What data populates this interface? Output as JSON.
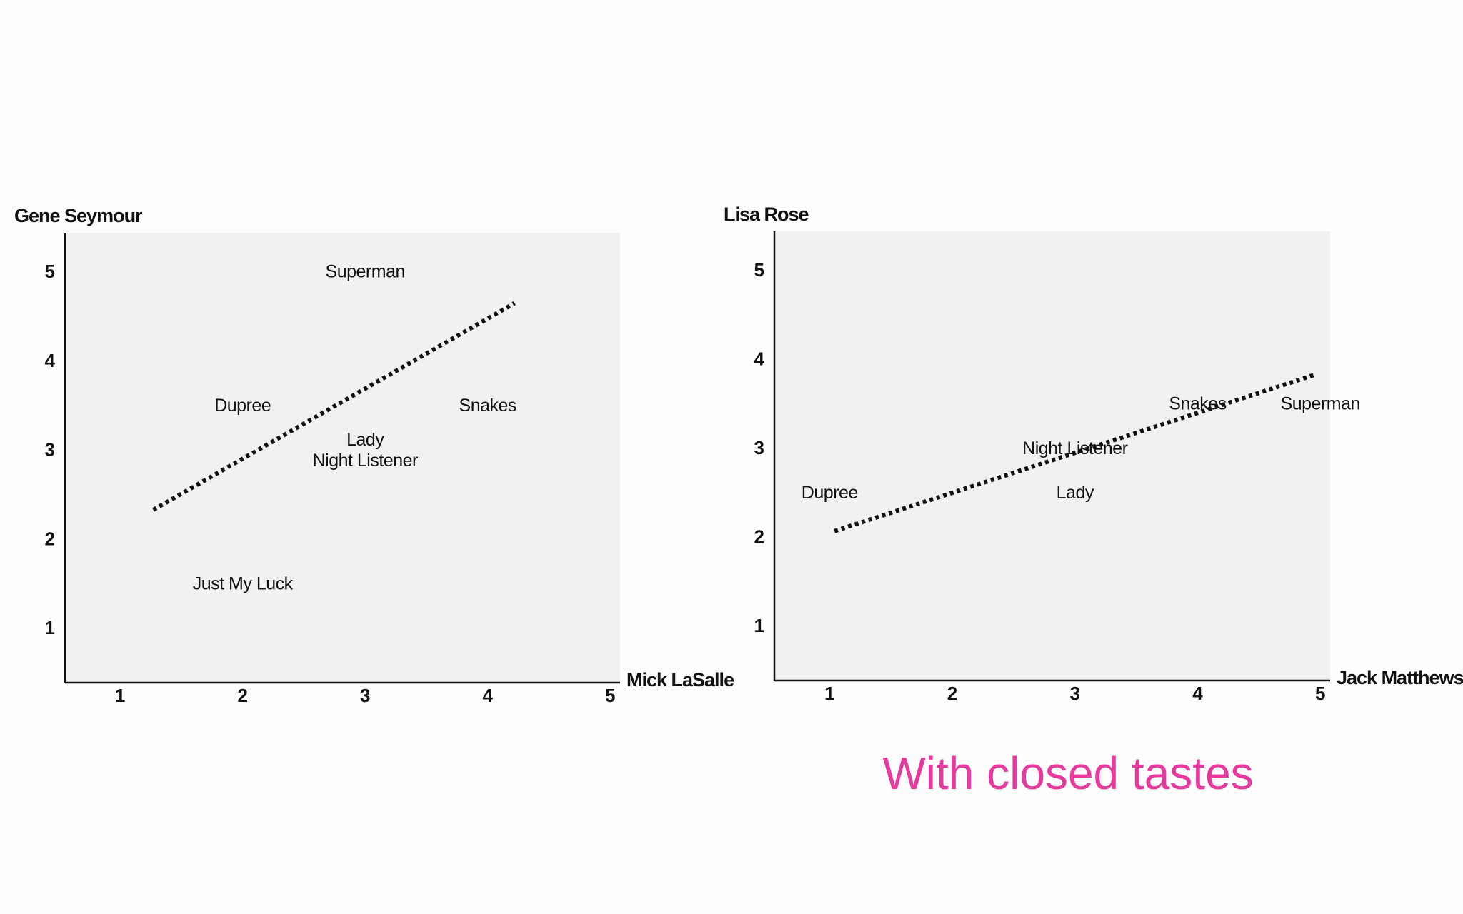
{
  "chart_data": [
    {
      "type": "scatter",
      "x_label": "Mick LaSalle",
      "y_label": "Gene Seymour",
      "labels": [
        "Superman",
        "Dupree",
        "Snakes",
        "Lady",
        "Night Listener",
        "Just My Luck"
      ],
      "x": [
        3,
        2,
        4,
        3,
        3,
        2
      ],
      "values": [
        5,
        3.5,
        3.5,
        3,
        3,
        1.5
      ],
      "trend_line": {
        "x": [
          1.27,
          4.22
        ],
        "values": [
          2.34,
          4.66
        ],
        "color": "#111111"
      },
      "xlim": [
        0.55,
        5.08
      ],
      "ylim": [
        0.4,
        5.45
      ],
      "xticks": [
        1,
        2,
        3,
        4,
        5
      ],
      "yticks": [
        1,
        2,
        3,
        4,
        5
      ],
      "grid": false,
      "plot_color": "#f1f0f2"
    },
    {
      "type": "scatter",
      "x_label": "Jack Matthews",
      "y_label": "Lisa Rose",
      "labels": [
        "Snakes",
        "Superman",
        "Night Listener",
        "Dupree",
        "Lady"
      ],
      "x": [
        4,
        5,
        3,
        1,
        3
      ],
      "values": [
        3.5,
        3.5,
        3,
        2.5,
        2.5
      ],
      "trend_line": {
        "x": [
          1.04,
          4.96
        ],
        "values": [
          2.08,
          3.84
        ],
        "color": "#111111"
      },
      "xlim": [
        0.55,
        5.08
      ],
      "ylim": [
        0.4,
        5.45
      ],
      "xticks": [
        1,
        2,
        3,
        4,
        5
      ],
      "yticks": [
        1,
        2,
        3,
        4,
        5
      ],
      "grid": false,
      "plot_color": "#f1f0f2"
    }
  ],
  "caption": {
    "text": "With closed tastes",
    "color": "#e8399f"
  }
}
